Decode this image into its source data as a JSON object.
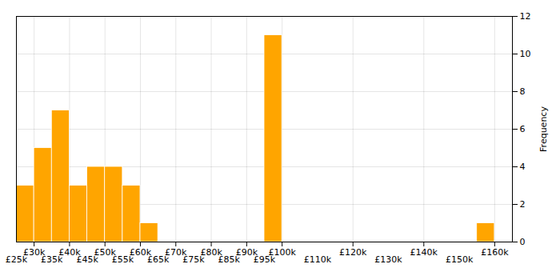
{
  "chart_data": {
    "type": "histogram",
    "bins": [
      25000,
      30000,
      35000,
      40000,
      45000,
      50000,
      55000,
      60000,
      65000,
      70000,
      75000,
      80000,
      85000,
      90000,
      95000,
      100000,
      105000,
      110000,
      115000,
      120000,
      125000,
      130000,
      135000,
      140000,
      145000,
      150000,
      155000,
      160000,
      165000
    ],
    "values": [
      3,
      5,
      7,
      3,
      4,
      4,
      3,
      1,
      0,
      0,
      0,
      0,
      0,
      0,
      11,
      0,
      0,
      0,
      0,
      0,
      0,
      0,
      0,
      0,
      0,
      0,
      1,
      0
    ],
    "color": "#FFA500",
    "ylabel": "Frequency",
    "ylim": [
      0,
      12
    ],
    "yticks": [
      0,
      2,
      4,
      6,
      8,
      10,
      12
    ],
    "xlim": [
      25000,
      165000
    ],
    "xticks": [
      {
        "value": 30000,
        "label": "£30k"
      },
      {
        "value": 40000,
        "label": "£40k"
      },
      {
        "value": 50000,
        "label": "£50k"
      },
      {
        "value": 60000,
        "label": "£60k"
      },
      {
        "value": 70000,
        "label": "£70k"
      },
      {
        "value": 80000,
        "label": "£80k"
      },
      {
        "value": 90000,
        "label": "£90k"
      },
      {
        "value": 100000,
        "label": "£100k"
      },
      {
        "value": 120000,
        "label": "£120k"
      },
      {
        "value": 140000,
        "label": "£140k"
      },
      {
        "value": 160000,
        "label": "£160k"
      }
    ],
    "x2ticks": [
      {
        "value": 25000,
        "label": "£25k"
      },
      {
        "value": 35000,
        "label": "£35k"
      },
      {
        "value": 45000,
        "label": "£45k"
      },
      {
        "value": 55000,
        "label": "£55k"
      },
      {
        "value": 65000,
        "label": "£65k"
      },
      {
        "value": 75000,
        "label": "£75k"
      },
      {
        "value": 85000,
        "label": "£85k"
      },
      {
        "value": 95000,
        "label": "£95k"
      },
      {
        "value": 110000,
        "label": "£110k"
      },
      {
        "value": 130000,
        "label": "£130k"
      },
      {
        "value": 150000,
        "label": "£150k"
      }
    ],
    "grid": true
  }
}
